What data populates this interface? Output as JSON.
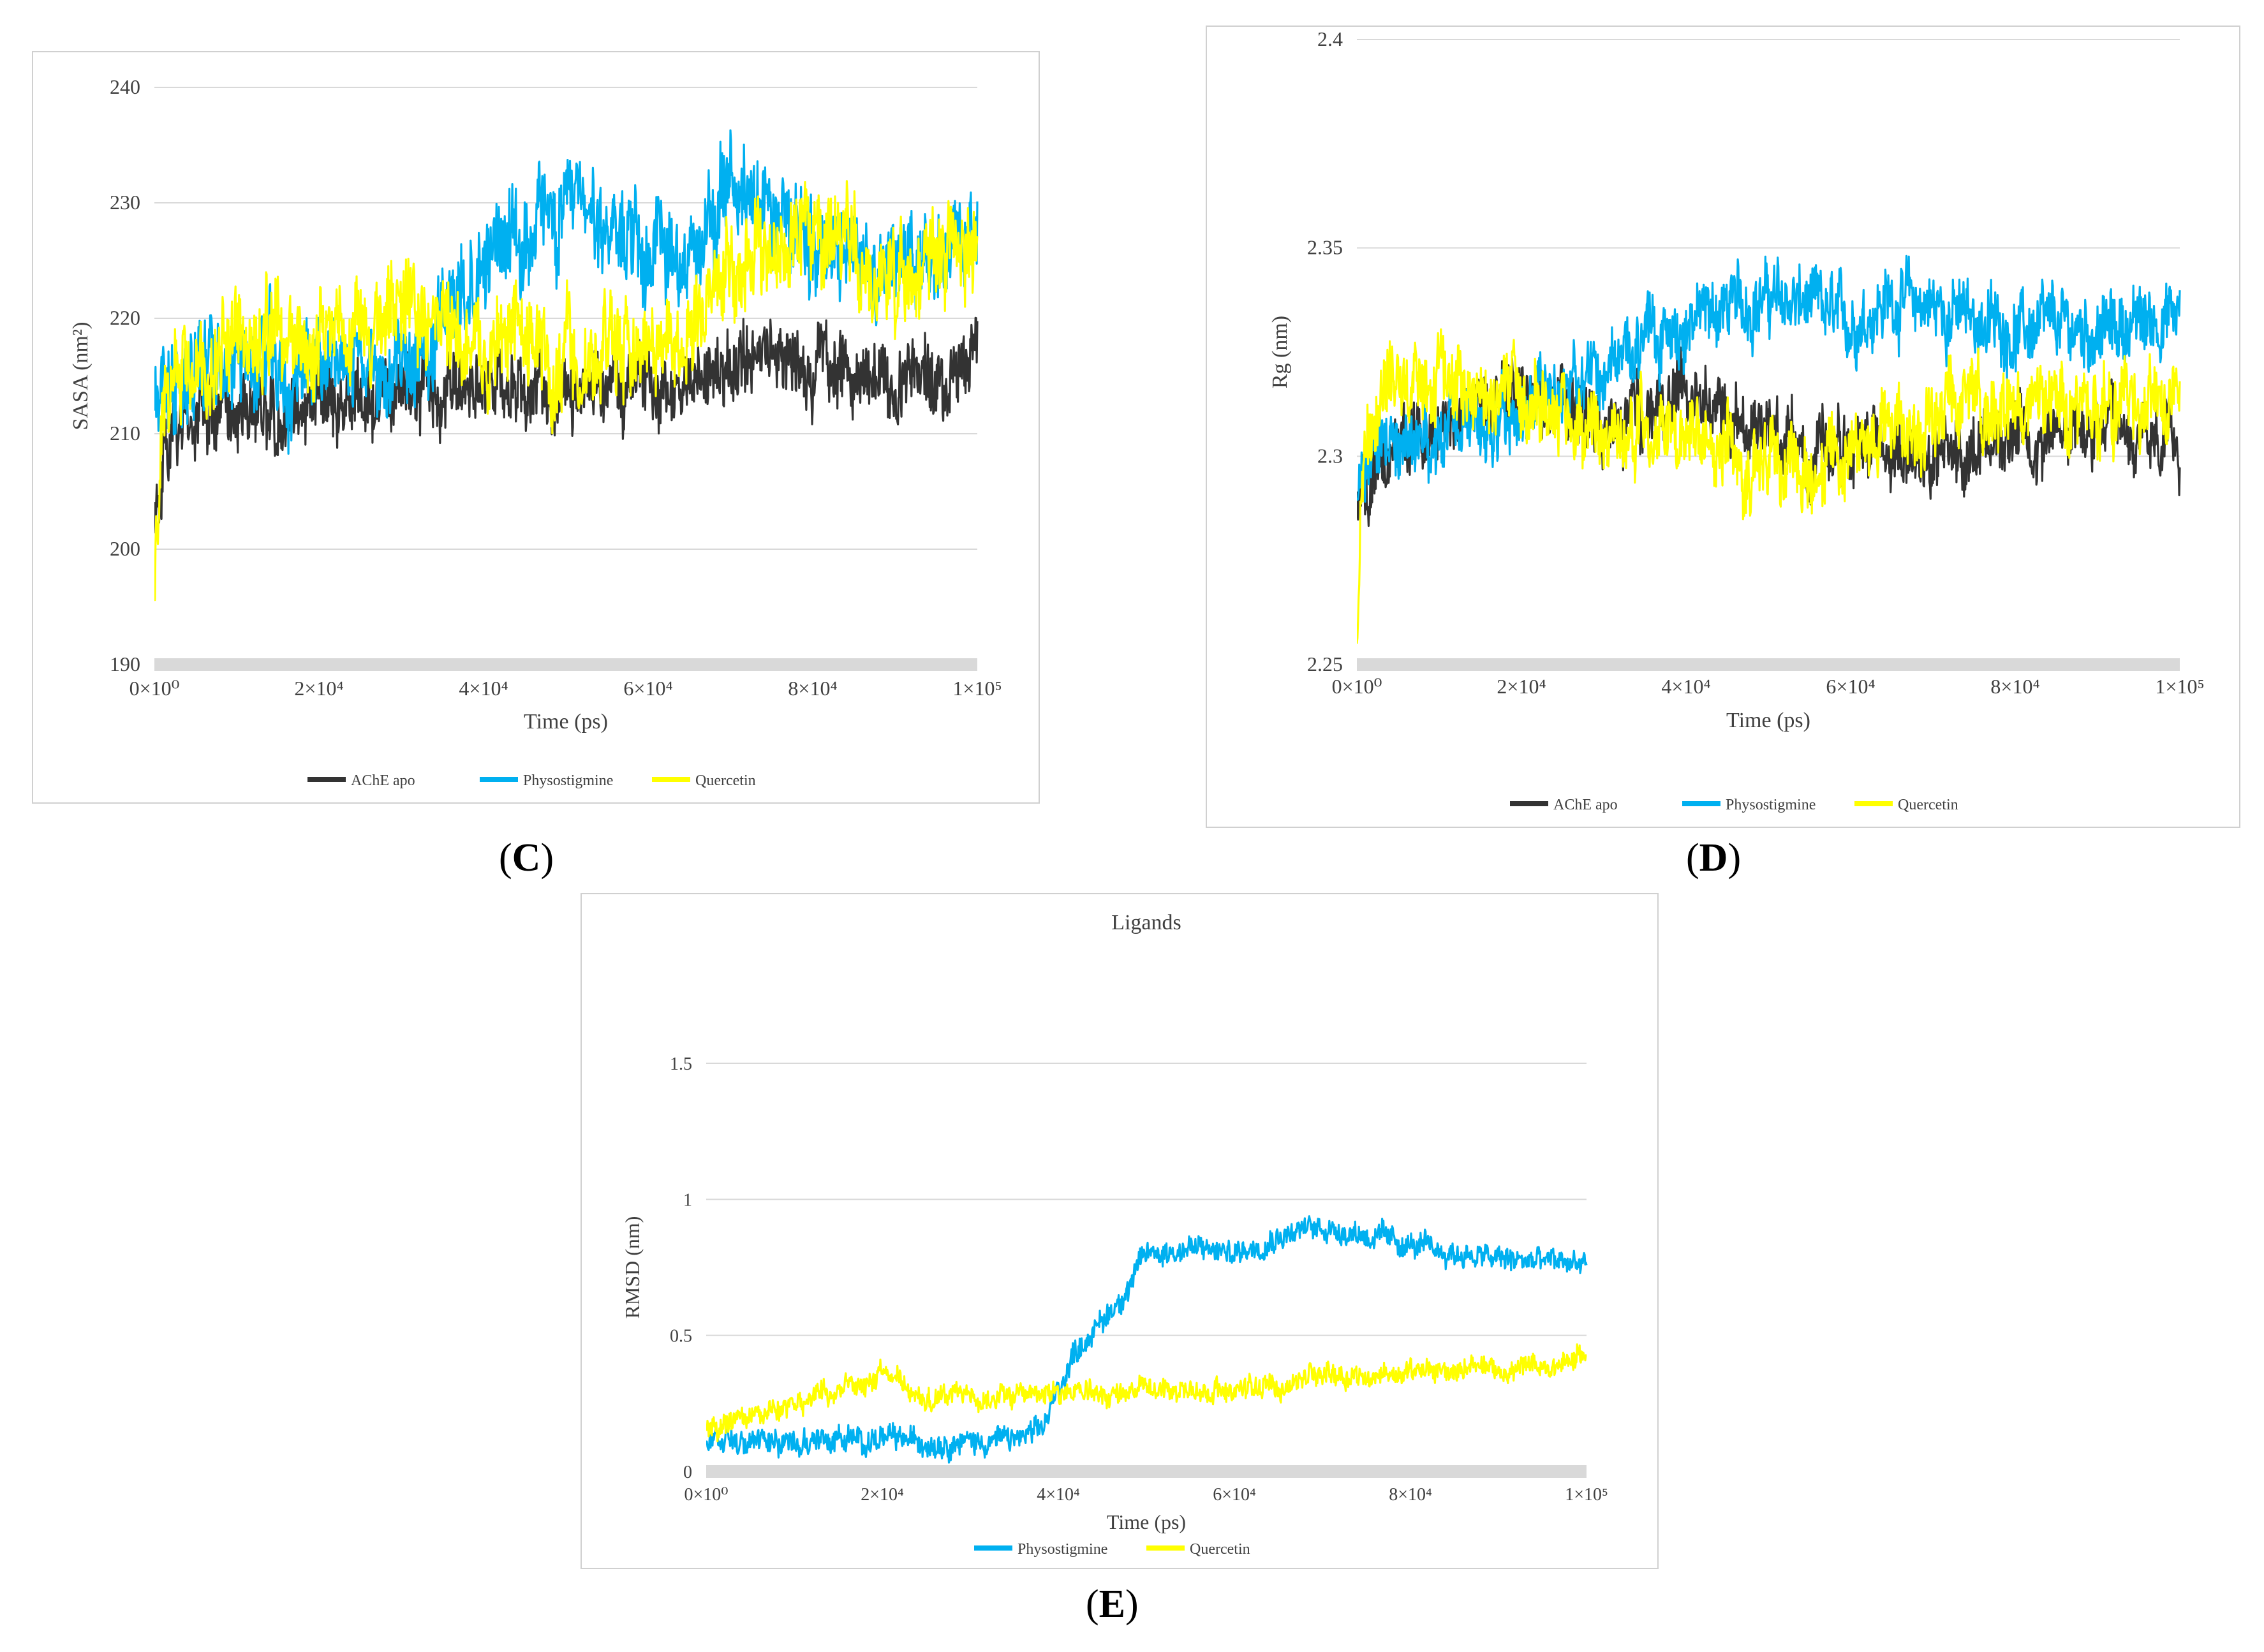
{
  "colors": {
    "ache_apo": "#333333",
    "physostigmine": "#00b0f0",
    "quercetin": "#ffff00",
    "axis_band": "#d9d9d9",
    "grid": "#d9d9d9",
    "text": "#404040"
  },
  "chart_data": [
    {
      "id": "C",
      "type": "line",
      "panel_label": "C",
      "title": "",
      "xlabel": "Time (ps)",
      "ylabel": "SASA (nm²)",
      "xlim": [
        0,
        100000
      ],
      "ylim": [
        190,
        240
      ],
      "yticks": [
        "190",
        "200",
        "210",
        "220",
        "230",
        "240"
      ],
      "ytick_values": [
        190,
        200,
        210,
        220,
        230,
        240
      ],
      "xticks": [
        "0×10⁰",
        "2×10⁴",
        "4×10⁴",
        "6×10⁴",
        "8×10⁴",
        "1×10⁵"
      ],
      "xtick_values": [
        0,
        20000,
        40000,
        60000,
        80000,
        100000
      ],
      "legend": "bottom",
      "series": [
        {
          "name": "AChE apo",
          "color": "#333333",
          "noise": 3.5,
          "start": 203,
          "x": [
            0,
            1000,
            3000,
            6000,
            10000,
            15000,
            20000,
            25000,
            30000,
            35000,
            40000,
            45000,
            50000,
            55000,
            60000,
            65000,
            70000,
            75000,
            80000,
            85000,
            90000,
            95000,
            100000
          ],
          "y": [
            203,
            207,
            210,
            211,
            212,
            212,
            213,
            213,
            214,
            214,
            215,
            214,
            214,
            214,
            214,
            214,
            216,
            217,
            216,
            215,
            215,
            215,
            216
          ]
        },
        {
          "name": "Physostigmine",
          "color": "#00b0f0",
          "noise": 4.5,
          "start": 212,
          "x": [
            0,
            1000,
            3000,
            6000,
            10000,
            15000,
            20000,
            25000,
            30000,
            35000,
            40000,
            45000,
            50000,
            55000,
            60000,
            65000,
            70000,
            75000,
            80000,
            85000,
            90000,
            95000,
            100000
          ],
          "y": [
            212,
            214,
            215,
            216,
            216,
            216,
            215,
            216,
            217,
            219,
            224,
            227,
            229,
            229,
            225,
            226,
            231,
            229,
            226,
            226,
            225,
            224,
            226
          ]
        },
        {
          "name": "Quercetin",
          "color": "#ffff00",
          "noise": 4.5,
          "start": 197,
          "x": [
            0,
            1000,
            3000,
            6000,
            10000,
            15000,
            20000,
            25000,
            30000,
            35000,
            40000,
            45000,
            50000,
            55000,
            60000,
            65000,
            70000,
            75000,
            80000,
            85000,
            90000,
            95000,
            100000
          ],
          "y": [
            197,
            213,
            217,
            217,
            218,
            219,
            218,
            218,
            221,
            220,
            218,
            217,
            217,
            218,
            217,
            218,
            225,
            225,
            226,
            225,
            224,
            225,
            226
          ]
        }
      ]
    },
    {
      "id": "D",
      "type": "line",
      "panel_label": "D",
      "title": "",
      "xlabel": "Time (ps)",
      "ylabel": "Rg (nm)",
      "xlim": [
        0,
        100000
      ],
      "ylim": [
        2.25,
        2.4
      ],
      "yticks": [
        "2.25",
        "2.3",
        "2.35",
        "2.4"
      ],
      "ytick_values": [
        2.25,
        2.3,
        2.35,
        2.4
      ],
      "xticks": [
        "0×10⁰",
        "2×10⁴",
        "4×10⁴",
        "6×10⁴",
        "8×10⁴",
        "1×10⁵"
      ],
      "xtick_values": [
        0,
        20000,
        40000,
        60000,
        80000,
        100000
      ],
      "legend": "bottom",
      "series": [
        {
          "name": "AChE apo",
          "color": "#333333",
          "noise": 0.009,
          "start": 2.285,
          "x": [
            0,
            1000,
            3000,
            6000,
            10000,
            15000,
            20000,
            25000,
            30000,
            35000,
            40000,
            45000,
            50000,
            55000,
            60000,
            65000,
            70000,
            75000,
            80000,
            85000,
            90000,
            95000,
            100000
          ],
          "y": [
            2.285,
            2.292,
            2.298,
            2.303,
            2.308,
            2.312,
            2.314,
            2.31,
            2.306,
            2.308,
            2.313,
            2.309,
            2.306,
            2.302,
            2.305,
            2.302,
            2.298,
            2.303,
            2.305,
            2.305,
            2.305,
            2.303,
            2.302
          ]
        },
        {
          "name": "Physostigmine",
          "color": "#00b0f0",
          "noise": 0.009,
          "start": 2.29,
          "x": [
            0,
            1000,
            3000,
            6000,
            10000,
            15000,
            20000,
            25000,
            30000,
            35000,
            40000,
            45000,
            50000,
            55000,
            60000,
            65000,
            70000,
            75000,
            80000,
            85000,
            90000,
            95000,
            100000
          ],
          "y": [
            2.29,
            2.296,
            2.3,
            2.303,
            2.306,
            2.309,
            2.312,
            2.315,
            2.321,
            2.328,
            2.332,
            2.336,
            2.338,
            2.336,
            2.332,
            2.338,
            2.336,
            2.333,
            2.33,
            2.331,
            2.33,
            2.332,
            2.334
          ]
        },
        {
          "name": "Quercetin",
          "color": "#ffff00",
          "noise": 0.01,
          "start": 2.255,
          "x": [
            0,
            1000,
            3000,
            6000,
            10000,
            15000,
            20000,
            25000,
            30000,
            35000,
            40000,
            45000,
            50000,
            55000,
            60000,
            65000,
            70000,
            75000,
            80000,
            85000,
            90000,
            95000,
            100000
          ],
          "y": [
            2.255,
            2.31,
            2.316,
            2.318,
            2.318,
            2.318,
            2.316,
            2.31,
            2.306,
            2.305,
            2.304,
            2.302,
            2.301,
            2.298,
            2.302,
            2.306,
            2.31,
            2.312,
            2.312,
            2.31,
            2.312,
            2.313,
            2.315
          ]
        }
      ]
    },
    {
      "id": "E",
      "type": "line",
      "panel_label": "E",
      "title": "Ligands",
      "xlabel": "Time (ps)",
      "ylabel": "RMSD (nm)",
      "xlim": [
        0,
        100000
      ],
      "ylim": [
        0,
        1.5
      ],
      "yticks": [
        "0",
        "0.5",
        "1",
        "1.5"
      ],
      "ytick_values": [
        0,
        0.5,
        1,
        1.5
      ],
      "xticks": [
        "0×10⁰",
        "2×10⁴",
        "4×10⁴",
        "6×10⁴",
        "8×10⁴",
        "1×10⁵"
      ],
      "xtick_values": [
        0,
        20000,
        40000,
        60000,
        80000,
        100000
      ],
      "legend": "bottom",
      "series": [
        {
          "name": "Physostigmine",
          "color": "#00b0f0",
          "noise": 0.05,
          "start": 0.1,
          "x": [
            0,
            5000,
            10000,
            15000,
            20000,
            25000,
            30000,
            35000,
            38000,
            40000,
            42000,
            45000,
            48000,
            50000,
            55000,
            60000,
            65000,
            70000,
            75000,
            80000,
            85000,
            90000,
            95000,
            100000
          ],
          "y": [
            0.1,
            0.1,
            0.11,
            0.12,
            0.12,
            0.11,
            0.11,
            0.12,
            0.14,
            0.3,
            0.45,
            0.55,
            0.68,
            0.8,
            0.82,
            0.8,
            0.87,
            0.9,
            0.87,
            0.83,
            0.8,
            0.78,
            0.77,
            0.77
          ]
        },
        {
          "name": "Quercetin",
          "color": "#ffff00",
          "noise": 0.045,
          "start": 0.15,
          "x": [
            0,
            5000,
            10000,
            15000,
            18000,
            20000,
            23000,
            25000,
            30000,
            35000,
            40000,
            45000,
            50000,
            55000,
            60000,
            65000,
            70000,
            75000,
            80000,
            85000,
            90000,
            95000,
            100000
          ],
          "y": [
            0.15,
            0.2,
            0.26,
            0.3,
            0.3,
            0.38,
            0.3,
            0.27,
            0.27,
            0.27,
            0.3,
            0.28,
            0.3,
            0.3,
            0.3,
            0.31,
            0.37,
            0.35,
            0.36,
            0.38,
            0.37,
            0.38,
            0.43
          ]
        }
      ]
    }
  ]
}
